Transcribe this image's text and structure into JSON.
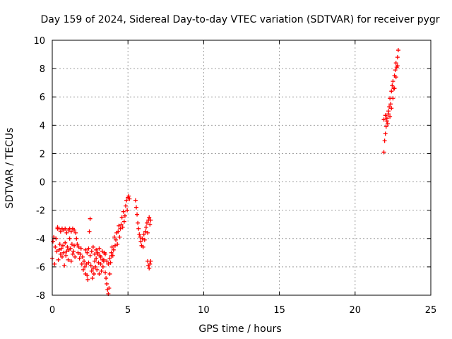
{
  "chart_data": {
    "type": "scatter",
    "title": "Day 159 of 2024, Sidereal Day-to-day VTEC variation (SDTVAR) for receiver pygr",
    "xlabel": "GPS time / hours",
    "ylabel": "SDTVAR / TECUs",
    "xlim": [
      0,
      25
    ],
    "ylim": [
      -8,
      10
    ],
    "xticks": [
      "0",
      "5",
      "10",
      "15",
      "20",
      "25"
    ],
    "yticks": [
      "-8",
      "-6",
      "-4",
      "-2",
      "0",
      "2",
      "4",
      "6",
      "8",
      "10"
    ],
    "grid": true,
    "marker": "+",
    "series": [
      {
        "name": "SDTVAR",
        "color": "#ff0000",
        "x": [
          0.0,
          0.05,
          0.1,
          0.15,
          0.2,
          0.25,
          0.3,
          0.35,
          0.4,
          0.45,
          0.5,
          0.55,
          0.6,
          0.65,
          0.7,
          0.75,
          0.8,
          0.85,
          0.9,
          0.95,
          1.0,
          1.05,
          1.1,
          1.15,
          1.2,
          1.25,
          1.3,
          1.35,
          1.4,
          1.45,
          1.5,
          0.35,
          0.45,
          0.55,
          0.65,
          0.75,
          0.85,
          0.95,
          1.05,
          1.15,
          1.25,
          1.35,
          1.45,
          1.55,
          1.6,
          1.65,
          1.7,
          1.75,
          1.8,
          1.85,
          1.9,
          1.95,
          2.0,
          2.05,
          2.1,
          2.15,
          2.2,
          2.25,
          2.3,
          2.35,
          2.4,
          2.45,
          2.5,
          2.55,
          2.6,
          2.65,
          2.7,
          2.75,
          2.8,
          2.85,
          2.9,
          2.95,
          3.0,
          3.05,
          3.1,
          3.15,
          3.2,
          3.25,
          3.3,
          3.35,
          3.4,
          3.45,
          3.5,
          3.55,
          3.6,
          3.65,
          3.7,
          3.75,
          3.8,
          3.85,
          3.9,
          3.95,
          4.0,
          4.05,
          4.1,
          4.15,
          4.2,
          4.25,
          4.3,
          4.35,
          4.4,
          4.45,
          4.5,
          4.55,
          4.6,
          4.65,
          4.7,
          4.75,
          4.8,
          4.85,
          4.9,
          4.95,
          5.0,
          5.05,
          5.1,
          2.2,
          2.3,
          2.4,
          2.5,
          2.6,
          2.7,
          2.8,
          2.9,
          3.0,
          3.1,
          3.2,
          3.3,
          3.4,
          3.5,
          3.6,
          3.7,
          3.8,
          3.9,
          5.5,
          5.55,
          5.6,
          5.65,
          5.7,
          5.75,
          5.8,
          5.85,
          5.9,
          5.95,
          6.0,
          6.05,
          6.1,
          6.15,
          6.2,
          6.25,
          6.3,
          6.35,
          6.4,
          6.45,
          6.5,
          6.3,
          6.35,
          6.4,
          6.45,
          6.5,
          21.9,
          21.95,
          22.0,
          22.05,
          22.1,
          22.15,
          22.2,
          22.25,
          22.3,
          22.35,
          22.4,
          22.45,
          22.5,
          22.55,
          22.6,
          22.65,
          22.7,
          22.75,
          22.8,
          22.85,
          21.9,
          22.0,
          22.1,
          22.2,
          22.3,
          22.4,
          22.5,
          22.6,
          22.7,
          22.8
        ],
        "y": [
          -5.4,
          -4.2,
          -3.9,
          -5.8,
          -4.6,
          -4.0,
          -4.9,
          -3.3,
          -5.5,
          -4.8,
          -4.4,
          -5.1,
          -4.7,
          -5.3,
          -4.5,
          -5.0,
          -5.9,
          -4.3,
          -5.2,
          -4.9,
          -4.6,
          -5.5,
          -4.8,
          -4.0,
          -4.7,
          -5.6,
          -4.4,
          -5.1,
          -4.9,
          -4.5,
          -5.3,
          -3.2,
          -3.3,
          -3.5,
          -3.3,
          -3.4,
          -3.3,
          -3.6,
          -3.4,
          -3.3,
          -3.5,
          -3.3,
          -3.4,
          -3.6,
          -4.0,
          -4.4,
          -5.0,
          -4.6,
          -5.4,
          -5.1,
          -4.7,
          -5.8,
          -5.3,
          -6.2,
          -5.6,
          -6.0,
          -6.5,
          -5.8,
          -6.6,
          -6.9,
          -5.7,
          -3.5,
          -2.6,
          -5.9,
          -6.3,
          -6.8,
          -6.1,
          -6.5,
          -5.6,
          -6.0,
          -5.4,
          -6.2,
          -5.1,
          -5.7,
          -6.5,
          -5.2,
          -5.8,
          -6.3,
          -5.5,
          -6.0,
          -5.6,
          -5.0,
          -6.4,
          -6.8,
          -7.2,
          -7.6,
          -7.9,
          -7.5,
          -6.5,
          -5.7,
          -5.0,
          -4.6,
          -5.2,
          -4.8,
          -3.9,
          -4.5,
          -4.1,
          -3.6,
          -4.4,
          -3.5,
          -3.1,
          -3.9,
          -3.3,
          -3.0,
          -2.5,
          -3.2,
          -2.1,
          -2.8,
          -2.4,
          -1.7,
          -1.3,
          -2.0,
          -1.1,
          -1.0,
          -1.2,
          -4.8,
          -5.0,
          -4.7,
          -5.2,
          -4.9,
          -4.6,
          -5.1,
          -4.8,
          -5.0,
          -4.7,
          -5.3,
          -4.9,
          -5.5,
          -5.1,
          -5.6,
          -5.8,
          -5.4,
          -5.2,
          -1.3,
          -1.8,
          -2.3,
          -2.9,
          -3.3,
          -3.7,
          -3.9,
          -4.2,
          -4.5,
          -4.0,
          -4.6,
          -3.7,
          -4.1,
          -3.5,
          -3.2,
          -2.9,
          -3.6,
          -2.7,
          -2.5,
          -3.0,
          -2.7,
          -5.6,
          -5.9,
          -6.1,
          -5.8,
          -5.6,
          2.1,
          2.9,
          3.4,
          3.9,
          4.5,
          4.1,
          4.8,
          5.3,
          5.9,
          5.5,
          6.4,
          6.8,
          7.1,
          6.6,
          7.5,
          7.9,
          8.4,
          8.1,
          8.8,
          9.3,
          4.4,
          4.7,
          4.3,
          5.0,
          4.6,
          5.2,
          5.9,
          6.6,
          7.4,
          8.2
        ]
      }
    ]
  }
}
